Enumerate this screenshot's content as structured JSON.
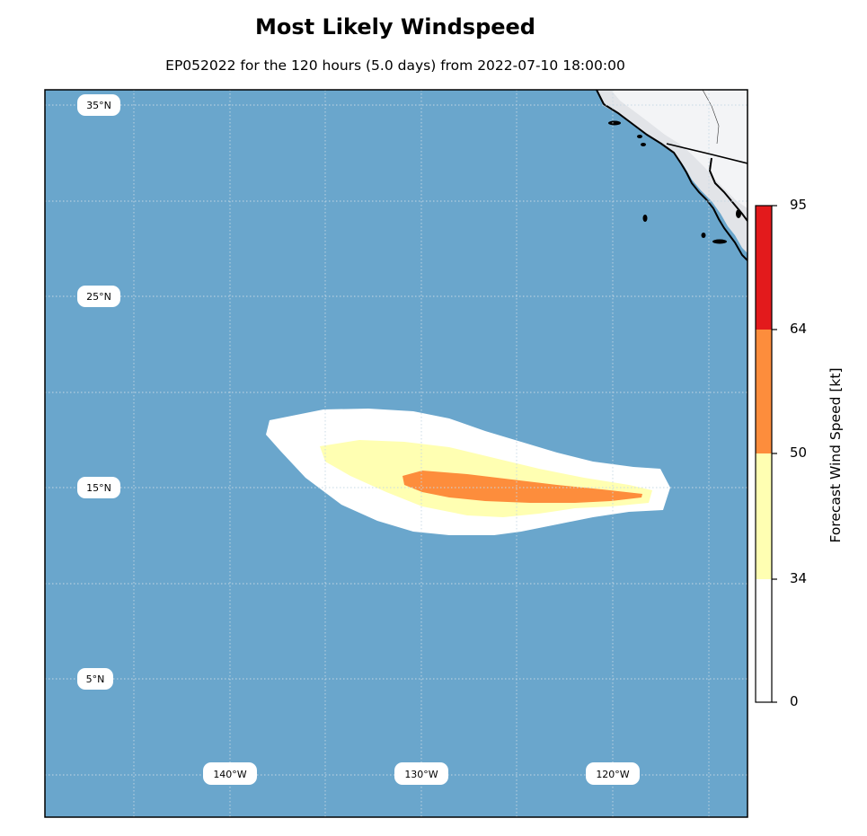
{
  "title": "Most Likely Windspeed",
  "subtitle": "EP052022 for the 120 hours (5.0 days) from 2022-07-10 18:00:00",
  "map": {
    "ocean_color": "#6aa6cc",
    "land_color": "#f2f3f5",
    "lat_labels": [
      "35°N",
      "25°N",
      "15°N",
      "5°N"
    ],
    "lon_labels": [
      "140°W",
      "130°W",
      "120°W"
    ]
  },
  "colorbar": {
    "title": "Forecast Wind Speed [kt]",
    "ticks": [
      "95",
      "64",
      "50",
      "34",
      "0"
    ],
    "bands": [
      {
        "range": "64-95",
        "color": "#e31a1c"
      },
      {
        "range": "50-64",
        "color": "#fd8d3c"
      },
      {
        "range": "34-50",
        "color": "#ffffb2"
      },
      {
        "range": "0-34",
        "color": "#ffffff"
      }
    ]
  }
}
